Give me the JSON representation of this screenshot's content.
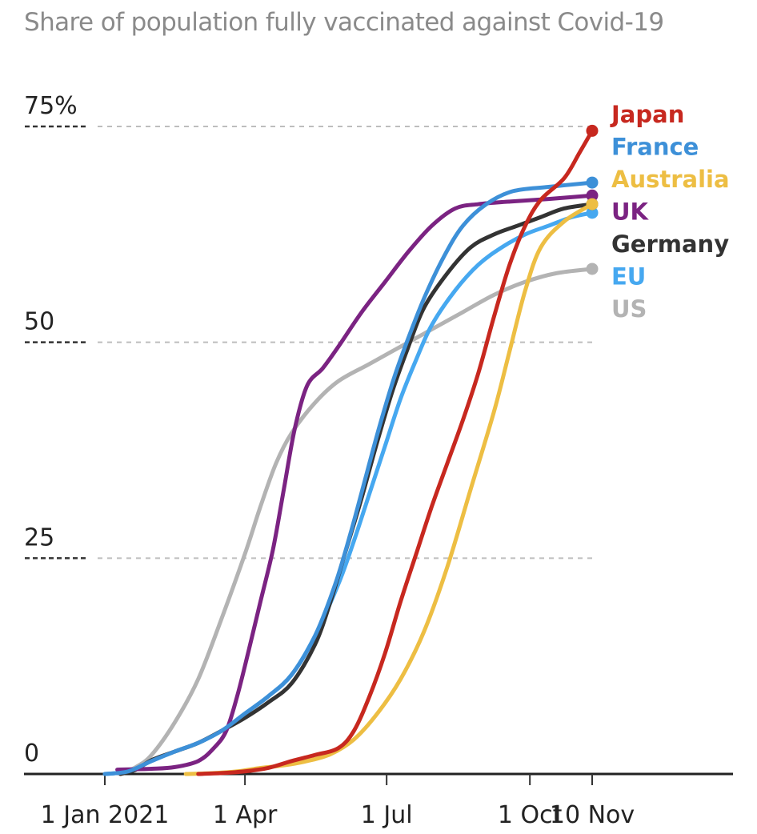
{
  "chart_data": {
    "type": "line",
    "title": "Share of population fully vaccinated against Covid-19",
    "xlabel": "",
    "ylabel": "",
    "ylim": [
      0,
      75
    ],
    "grid": true,
    "legend_placement": "right",
    "y_ticks": [
      {
        "value": 75,
        "label": "75%"
      },
      {
        "value": 50,
        "label": "50"
      },
      {
        "value": 25,
        "label": "25"
      },
      {
        "value": 0,
        "label": "0"
      }
    ],
    "x_ticks": [
      {
        "day": 0,
        "label": "1 Jan 2021"
      },
      {
        "day": 90,
        "label": "1 Apr"
      },
      {
        "day": 181,
        "label": "1 Jul"
      },
      {
        "day": 273,
        "label": "1 Oct"
      },
      {
        "day": 313,
        "label": "10 Nov"
      }
    ],
    "xlim_days": [
      -52,
      405
    ],
    "x_unit": "days since 1 Jan 2021",
    "series": [
      {
        "name": "US",
        "color": "#b3b3b3",
        "points": [
          [
            10,
            0
          ],
          [
            20,
            0.8
          ],
          [
            30,
            2.2
          ],
          [
            45,
            6
          ],
          [
            60,
            11
          ],
          [
            75,
            18
          ],
          [
            90,
            25.5
          ],
          [
            100,
            31
          ],
          [
            110,
            36
          ],
          [
            120,
            39.5
          ],
          [
            135,
            43
          ],
          [
            150,
            45.5
          ],
          [
            170,
            47.5
          ],
          [
            190,
            49.5
          ],
          [
            210,
            51.5
          ],
          [
            230,
            53.5
          ],
          [
            250,
            55.5
          ],
          [
            270,
            57
          ],
          [
            290,
            58
          ],
          [
            313,
            58.5
          ]
        ]
      },
      {
        "name": "EU",
        "color": "#46a8f0",
        "points": [
          [
            0,
            0
          ],
          [
            15,
            0.3
          ],
          [
            30,
            1.5
          ],
          [
            45,
            2.6
          ],
          [
            60,
            3.6
          ],
          [
            75,
            5
          ],
          [
            90,
            7
          ],
          [
            105,
            9
          ],
          [
            120,
            11.5
          ],
          [
            135,
            16
          ],
          [
            150,
            22
          ],
          [
            160,
            27
          ],
          [
            170,
            32.5
          ],
          [
            180,
            38
          ],
          [
            190,
            43.5
          ],
          [
            200,
            48
          ],
          [
            210,
            52
          ],
          [
            225,
            56
          ],
          [
            240,
            59
          ],
          [
            255,
            61
          ],
          [
            270,
            62.5
          ],
          [
            285,
            63.5
          ],
          [
            300,
            64.5
          ],
          [
            313,
            65
          ]
        ]
      },
      {
        "name": "Germany",
        "color": "#333333",
        "points": [
          [
            10,
            0
          ],
          [
            20,
            0.5
          ],
          [
            30,
            1.6
          ],
          [
            45,
            2.6
          ],
          [
            60,
            3.6
          ],
          [
            75,
            5
          ],
          [
            90,
            6.5
          ],
          [
            105,
            8.3
          ],
          [
            120,
            10.5
          ],
          [
            135,
            15
          ],
          [
            145,
            20
          ],
          [
            155,
            26
          ],
          [
            165,
            32
          ],
          [
            175,
            38.5
          ],
          [
            185,
            44.5
          ],
          [
            195,
            49.5
          ],
          [
            205,
            54
          ],
          [
            220,
            58
          ],
          [
            235,
            61
          ],
          [
            250,
            62.5
          ],
          [
            265,
            63.5
          ],
          [
            280,
            64.5
          ],
          [
            295,
            65.5
          ],
          [
            313,
            66
          ]
        ]
      },
      {
        "name": "UK",
        "color": "#7b2382",
        "points": [
          [
            8,
            0.5
          ],
          [
            30,
            0.6
          ],
          [
            45,
            0.8
          ],
          [
            60,
            1.5
          ],
          [
            70,
            3
          ],
          [
            78,
            5
          ],
          [
            85,
            9
          ],
          [
            92,
            14
          ],
          [
            100,
            20
          ],
          [
            108,
            26
          ],
          [
            115,
            33
          ],
          [
            122,
            40
          ],
          [
            130,
            45
          ],
          [
            140,
            47
          ],
          [
            150,
            49.5
          ],
          [
            165,
            53.5
          ],
          [
            180,
            57
          ],
          [
            195,
            60.5
          ],
          [
            210,
            63.5
          ],
          [
            225,
            65.5
          ],
          [
            240,
            66
          ],
          [
            260,
            66.3
          ],
          [
            285,
            66.6
          ],
          [
            313,
            67
          ]
        ]
      },
      {
        "name": "Australia",
        "color": "#edbe43",
        "points": [
          [
            52,
            0
          ],
          [
            70,
            0.1
          ],
          [
            85,
            0.3
          ],
          [
            100,
            0.7
          ],
          [
            115,
            1
          ],
          [
            130,
            1.5
          ],
          [
            145,
            2.3
          ],
          [
            160,
            4
          ],
          [
            175,
            7
          ],
          [
            190,
            11
          ],
          [
            205,
            16.5
          ],
          [
            220,
            24
          ],
          [
            235,
            33
          ],
          [
            250,
            42
          ],
          [
            260,
            49
          ],
          [
            270,
            56
          ],
          [
            280,
            61
          ],
          [
            295,
            64
          ],
          [
            313,
            66
          ]
        ]
      },
      {
        "name": "France",
        "color": "#3d90d8",
        "points": [
          [
            0,
            0
          ],
          [
            15,
            0.3
          ],
          [
            30,
            1.5
          ],
          [
            45,
            2.6
          ],
          [
            60,
            3.6
          ],
          [
            75,
            5
          ],
          [
            90,
            7
          ],
          [
            105,
            9
          ],
          [
            120,
            11.5
          ],
          [
            135,
            16
          ],
          [
            148,
            22
          ],
          [
            158,
            28
          ],
          [
            167,
            34
          ],
          [
            176,
            40
          ],
          [
            186,
            46
          ],
          [
            196,
            51
          ],
          [
            206,
            55.5
          ],
          [
            218,
            60
          ],
          [
            230,
            63.5
          ],
          [
            245,
            66
          ],
          [
            262,
            67.5
          ],
          [
            285,
            68
          ],
          [
            313,
            68.5
          ]
        ]
      },
      {
        "name": "Japan",
        "color": "#c7281f",
        "points": [
          [
            60,
            0
          ],
          [
            75,
            0.1
          ],
          [
            90,
            0.3
          ],
          [
            105,
            0.7
          ],
          [
            120,
            1.5
          ],
          [
            135,
            2.2
          ],
          [
            150,
            3
          ],
          [
            160,
            5
          ],
          [
            170,
            9
          ],
          [
            180,
            14
          ],
          [
            190,
            20
          ],
          [
            200,
            25.5
          ],
          [
            210,
            31
          ],
          [
            220,
            36
          ],
          [
            230,
            41
          ],
          [
            240,
            46.5
          ],
          [
            250,
            53
          ],
          [
            260,
            59
          ],
          [
            270,
            63.5
          ],
          [
            280,
            66.5
          ],
          [
            295,
            69
          ],
          [
            305,
            72
          ],
          [
            313,
            74.5
          ]
        ]
      }
    ],
    "legend_order": [
      "Japan",
      "France",
      "Australia",
      "UK",
      "Germany",
      "EU",
      "US"
    ]
  }
}
